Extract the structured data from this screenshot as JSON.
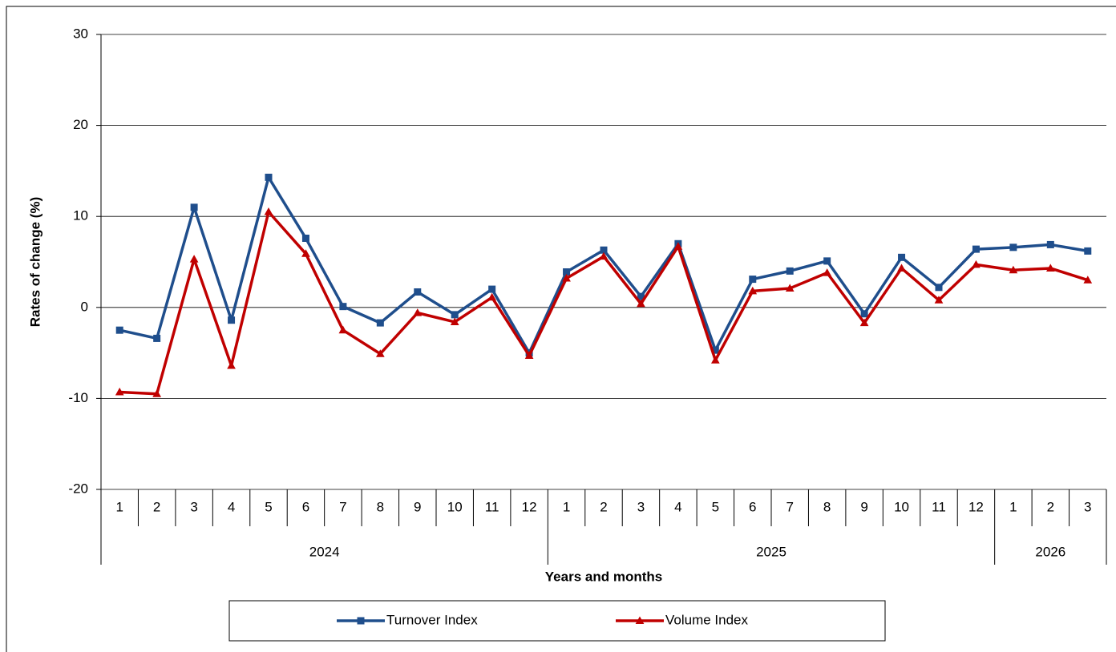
{
  "chart_data": {
    "type": "line",
    "y_label": "Rates of change (%)",
    "x_label": "Years and months",
    "year_groups": [
      {
        "label": "2024",
        "months": [
          "1",
          "2",
          "3",
          "4",
          "5",
          "6",
          "7",
          "8",
          "9",
          "10",
          "11",
          "12"
        ]
      },
      {
        "label": "2025",
        "months": [
          "1",
          "2",
          "3",
          "4",
          "5",
          "6",
          "7",
          "8",
          "9",
          "10",
          "11",
          "12"
        ]
      },
      {
        "label": "2026",
        "months": [
          "1",
          "2",
          "3"
        ]
      }
    ],
    "series": [
      {
        "name": "Turnover Index",
        "color": "#1f4e8c",
        "marker": "square",
        "values": [
          -2.5,
          -3.4,
          11.0,
          -1.4,
          14.3,
          7.6,
          0.1,
          -1.7,
          1.7,
          -0.8,
          2.0,
          -5.0,
          3.9,
          6.3,
          1.2,
          7.0,
          -4.7,
          3.1,
          4.0,
          5.1,
          -0.7,
          5.5,
          2.2,
          6.4,
          6.6,
          6.9,
          6.2
        ]
      },
      {
        "name": "Volume Index",
        "color": "#c00000",
        "marker": "triangle",
        "values": [
          -9.3,
          -9.5,
          5.3,
          -6.4,
          10.5,
          5.9,
          -2.5,
          -5.1,
          -0.6,
          -1.6,
          1.1,
          -5.3,
          3.2,
          5.6,
          0.4,
          6.7,
          -5.8,
          1.8,
          2.1,
          3.8,
          -1.7,
          4.3,
          0.8,
          4.7,
          4.1,
          4.3,
          3.0
        ]
      }
    ],
    "ylim": [
      -20,
      30
    ],
    "yticks": [
      -20,
      -10,
      0,
      10,
      20,
      30
    ],
    "grid": true,
    "legend": "bottom"
  }
}
